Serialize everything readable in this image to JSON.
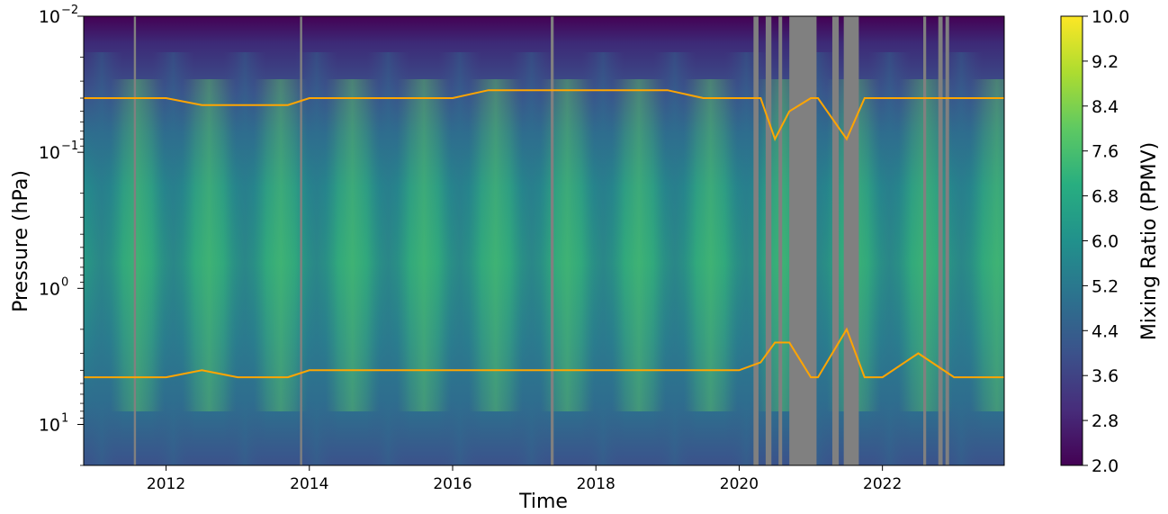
{
  "chart_data": {
    "type": "heatmap",
    "xlabel": "Time",
    "ylabel": "Pressure (hPa)",
    "x_ticks": [
      "2012",
      "2014",
      "2016",
      "2018",
      "2020",
      "2022"
    ],
    "x_tick_values": [
      2012,
      2014,
      2016,
      2018,
      2020,
      2022
    ],
    "xlim": [
      2010.85,
      2023.7
    ],
    "y_scale": "log",
    "y_inverted": true,
    "ylim": [
      20,
      0.01
    ],
    "y_tick_labels": [
      {
        "base": "10",
        "exp": "−2",
        "value": 0.01
      },
      {
        "base": "10",
        "exp": "−1",
        "value": 0.1
      },
      {
        "base": "10",
        "exp": "0",
        "value": 1
      },
      {
        "base": "10",
        "exp": "1",
        "value": 10
      }
    ],
    "colorbar": {
      "label": "Mixing Ratio (PPMV)",
      "colormap": "viridis",
      "range": [
        2.0,
        10.0
      ],
      "ticks": [
        "2.0",
        "2.8",
        "3.6",
        "4.4",
        "5.2",
        "6.0",
        "6.8",
        "7.6",
        "8.4",
        "9.2",
        "10.0"
      ]
    },
    "missing_data_color": "#808080",
    "missing_periods": [
      [
        2011.55,
        2011.58
      ],
      [
        2013.87,
        2013.9
      ],
      [
        2017.37,
        2017.41
      ],
      [
        2020.2,
        2020.27
      ],
      [
        2020.37,
        2020.45
      ],
      [
        2020.55,
        2020.6
      ],
      [
        2020.7,
        2021.08
      ],
      [
        2021.3,
        2021.39
      ],
      [
        2021.46,
        2021.67
      ],
      [
        2022.57,
        2022.61
      ],
      [
        2022.78,
        2022.84
      ],
      [
        2022.88,
        2022.93
      ]
    ],
    "series": [
      {
        "color": "#FFA500",
        "x": [
          2010.85,
          2011.5,
          2012.0,
          2012.5,
          2013.0,
          2013.5,
          2013.7,
          2014.0,
          2014.5,
          2015.0,
          2015.5,
          2016.0,
          2016.5,
          2017.0,
          2017.5,
          2018.0,
          2018.5,
          2019.0,
          2019.5,
          2020.0,
          2020.3,
          2020.5,
          2020.7,
          2021.0,
          2021.1,
          2021.5,
          2021.75,
          2022.0,
          2022.5,
          2023.0,
          2023.7
        ],
        "y": [
          0.04,
          0.04,
          0.04,
          0.045,
          0.045,
          0.045,
          0.045,
          0.04,
          0.04,
          0.04,
          0.04,
          0.04,
          0.035,
          0.035,
          0.035,
          0.035,
          0.035,
          0.035,
          0.04,
          0.04,
          0.04,
          0.08,
          0.05,
          0.04,
          0.04,
          0.08,
          0.04,
          0.04,
          0.04,
          0.04,
          0.04
        ]
      },
      {
        "color": "#FFA500",
        "x": [
          2010.85,
          2011.5,
          2012.0,
          2012.5,
          2013.0,
          2013.5,
          2013.7,
          2014.0,
          2014.5,
          2015.0,
          2015.5,
          2016.0,
          2016.5,
          2017.0,
          2017.5,
          2018.0,
          2018.5,
          2019.0,
          2019.5,
          2020.0,
          2020.3,
          2020.5,
          2020.7,
          2021.0,
          2021.1,
          2021.5,
          2021.75,
          2022.0,
          2022.5,
          2023.0,
          2023.7
        ],
        "y": [
          4.5,
          4.5,
          4.5,
          4.0,
          4.5,
          4.5,
          4.5,
          4.0,
          4.0,
          4.0,
          4.0,
          4.0,
          4.0,
          4.0,
          4.0,
          4.0,
          4.0,
          4.0,
          4.0,
          4.0,
          3.5,
          2.5,
          2.5,
          4.5,
          4.5,
          2.0,
          4.5,
          4.5,
          3.0,
          4.5,
          4.5
        ]
      }
    ]
  }
}
